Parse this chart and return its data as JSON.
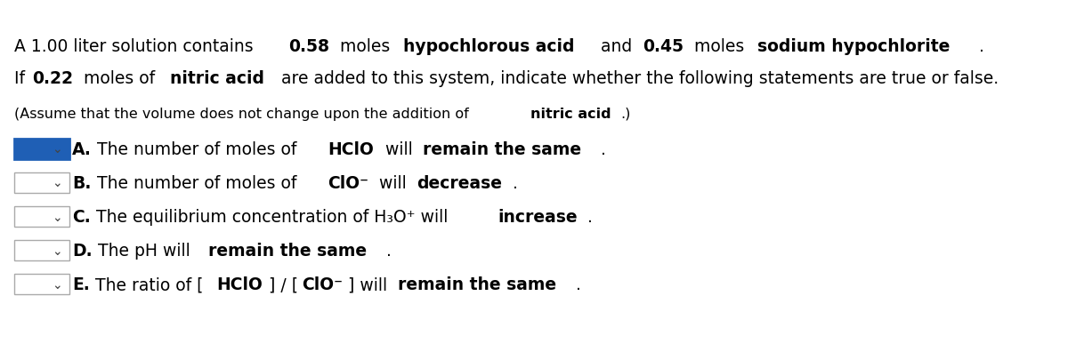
{
  "bg_color": "#ffffff",
  "line1_normal": "A 1.00 liter solution contains ",
  "line1_bold1": "0.58",
  "line1_mid1": " moles ",
  "line1_bold2": "hypochlorous acid",
  "line1_mid2": " and ",
  "line1_bold3": "0.45",
  "line1_mid3": " moles ",
  "line1_bold4": "sodium hypochlorite",
  "line1_end": " .",
  "line2_normal1": "If ",
  "line2_bold1": "0.22",
  "line2_mid1": " moles of ",
  "line2_bold2": "nitric acid",
  "line2_mid2": " are added to this system, indicate whether the following statements are true or false.",
  "line3": "(Assume that the volume does not change upon the addition of ",
  "line3_bold": "nitric acid",
  "line3_end": ".)",
  "items": [
    {
      "label": "A",
      "box_color": "#1f5fb5",
      "box_border": "#1f5fb5",
      "text_parts": [
        {
          "text": "The number of moles of ",
          "bold": false
        },
        {
          "text": "HClO",
          "bold": true
        },
        {
          "text": " will ",
          "bold": false
        },
        {
          "text": "remain the same",
          "bold": true
        },
        {
          "text": ".",
          "bold": false
        }
      ]
    },
    {
      "label": "B",
      "box_color": "#ffffff",
      "box_border": "#aaaaaa",
      "text_parts": [
        {
          "text": "The number of moles of ",
          "bold": false
        },
        {
          "text": "ClO⁻",
          "bold": true
        },
        {
          "text": " will ",
          "bold": false
        },
        {
          "text": "decrease",
          "bold": true
        },
        {
          "text": ".",
          "bold": false
        }
      ]
    },
    {
      "label": "C",
      "box_color": "#ffffff",
      "box_border": "#aaaaaa",
      "text_parts": [
        {
          "text": "The equilibrium concentration of H₃O⁺ will ",
          "bold": false
        },
        {
          "text": "increase",
          "bold": true
        },
        {
          "text": ".",
          "bold": false
        }
      ]
    },
    {
      "label": "D",
      "box_color": "#ffffff",
      "box_border": "#aaaaaa",
      "text_parts": [
        {
          "text": "The pH will ",
          "bold": false
        },
        {
          "text": "remain the same",
          "bold": true
        },
        {
          "text": ".",
          "bold": false
        }
      ]
    },
    {
      "label": "E",
      "box_color": "#ffffff",
      "box_border": "#aaaaaa",
      "text_parts": [
        {
          "text": "The ratio of [",
          "bold": false
        },
        {
          "text": "HClO",
          "bold": true
        },
        {
          "text": "] / [",
          "bold": false
        },
        {
          "text": "ClO⁻",
          "bold": true
        },
        {
          "text": "] will ",
          "bold": false
        },
        {
          "text": "remain the same",
          "bold": true
        },
        {
          "text": ".",
          "bold": false
        }
      ]
    }
  ],
  "font_size_main": 13.5,
  "font_size_items": 13.5,
  "font_size_assume": 11.5
}
